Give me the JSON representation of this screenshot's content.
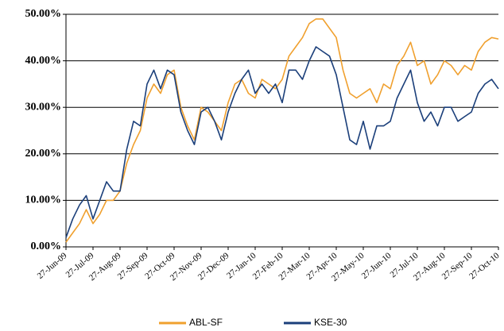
{
  "chart_data": {
    "type": "line",
    "categories": [
      "27-Jun-09",
      null,
      null,
      null,
      "27-Jul-09",
      null,
      null,
      null,
      "27-Aug-09",
      null,
      null,
      null,
      "27-Sep-09",
      null,
      null,
      null,
      "27-Oct-09",
      null,
      null,
      null,
      "27-Nov-09",
      null,
      null,
      null,
      "27-Dec-09",
      null,
      null,
      null,
      "27-Jan-10",
      null,
      null,
      null,
      "27-Feb-10",
      null,
      null,
      null,
      "27-Mar-10",
      null,
      null,
      null,
      "27-Apr-10",
      null,
      null,
      null,
      "27-May-10",
      null,
      null,
      null,
      "27-Jun-10",
      null,
      null,
      null,
      "27-Jul-10",
      null,
      null,
      null,
      "27-Aug-10",
      null,
      null,
      null,
      "27-Sep-10",
      null,
      null,
      null,
      "27-Oct-10"
    ],
    "series": [
      {
        "name": "ABL-SF",
        "color": "#f0a02e",
        "values": [
          1,
          3,
          5,
          8,
          5,
          7,
          10,
          10,
          12,
          18,
          22,
          25,
          32,
          35,
          33,
          37,
          38,
          30,
          26,
          23,
          30,
          29,
          27,
          25,
          31,
          35,
          36,
          33,
          32,
          36,
          35,
          34,
          36,
          41,
          43,
          45,
          48,
          49,
          49,
          47,
          45,
          38,
          33,
          32,
          33,
          34,
          31,
          35,
          34,
          39,
          41,
          44,
          39,
          40,
          35,
          37,
          40,
          39,
          37,
          39,
          38,
          42,
          44,
          45,
          44.7
        ]
      },
      {
        "name": "KSE-30",
        "color": "#1b3f7a",
        "values": [
          2,
          6,
          9,
          11,
          6,
          10,
          14,
          12,
          12,
          21,
          27,
          26,
          35,
          38,
          34,
          38,
          37,
          29,
          25,
          22,
          29,
          30,
          27,
          23,
          29,
          33,
          36,
          38,
          33,
          35,
          33,
          35,
          31,
          38,
          38,
          36,
          40,
          43,
          42,
          41,
          37,
          30,
          23,
          22,
          27,
          21,
          26,
          26,
          27,
          32,
          35,
          38,
          31,
          27,
          29,
          26,
          30,
          30,
          27,
          28,
          29,
          33,
          35,
          36,
          34
        ]
      }
    ],
    "ylim": [
      0,
      50
    ],
    "yticks": [
      {
        "value": 0,
        "label": "0.00%"
      },
      {
        "value": 10,
        "label": "10.00%"
      },
      {
        "value": 20,
        "label": "20.00%"
      },
      {
        "value": 30,
        "label": "30.00%"
      },
      {
        "value": 40,
        "label": "40.00%"
      },
      {
        "value": 50,
        "label": "50.00%"
      }
    ],
    "grid": true,
    "legend": "bottom"
  }
}
